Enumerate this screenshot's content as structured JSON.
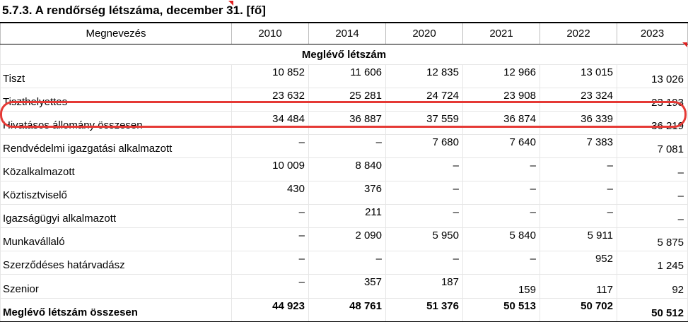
{
  "title": "5.7.3. A rendőrség létszáma, december 31. [fő]",
  "columns": [
    "Megnevezés",
    "2010",
    "2014",
    "2020",
    "2021",
    "2022",
    "2023"
  ],
  "section": "Meglévő létszám",
  "rows": [
    {
      "name": "Tiszt",
      "values": [
        "10 852",
        "11 606",
        "12 835",
        "12 966",
        "13 015",
        "13 026"
      ]
    },
    {
      "name": "Tiszthelyettes",
      "values": [
        "23 632",
        "25 281",
        "24 724",
        "23 908",
        "23 324",
        "23 193"
      ]
    },
    {
      "name": "Hivatásos állomány összesen",
      "values": [
        "34 484",
        "36 887",
        "37 559",
        "36 874",
        "36 339",
        "36 219"
      ]
    },
    {
      "name": "Rendvédelmi igazgatási alkalmazott",
      "values": [
        "–",
        "–",
        "7 680",
        "7 640",
        "7 383",
        "7 081"
      ]
    },
    {
      "name": "Közalkalmazott",
      "values": [
        "10 009",
        "8 840",
        "–",
        "–",
        "–",
        "–"
      ]
    },
    {
      "name": "Köztisztviselő",
      "values": [
        "430",
        "376",
        "–",
        "–",
        "–",
        "–"
      ]
    },
    {
      "name": "Igazságügyi alkalmazott",
      "values": [
        "–",
        "211",
        "–",
        "–",
        "–",
        "–"
      ]
    },
    {
      "name": "Munkavállaló",
      "values": [
        "–",
        "2 090",
        "5 950",
        "5 840",
        "5 911",
        "5 875"
      ]
    },
    {
      "name": "Szerződéses határvadász",
      "values": [
        "–",
        "–",
        "–",
        "–",
        "952",
        "1 245"
      ]
    },
    {
      "name": "Szenior",
      "values": [
        "–",
        "357",
        "187",
        "159",
        "117",
        "92"
      ]
    },
    {
      "name": "Meglévő létszám összesen",
      "values": [
        "44 923",
        "48 761",
        "51 376",
        "50 513",
        "50 702",
        "50 512"
      ]
    }
  ],
  "highlight_color": "#e53935",
  "comment_marker_color": "#e02020"
}
